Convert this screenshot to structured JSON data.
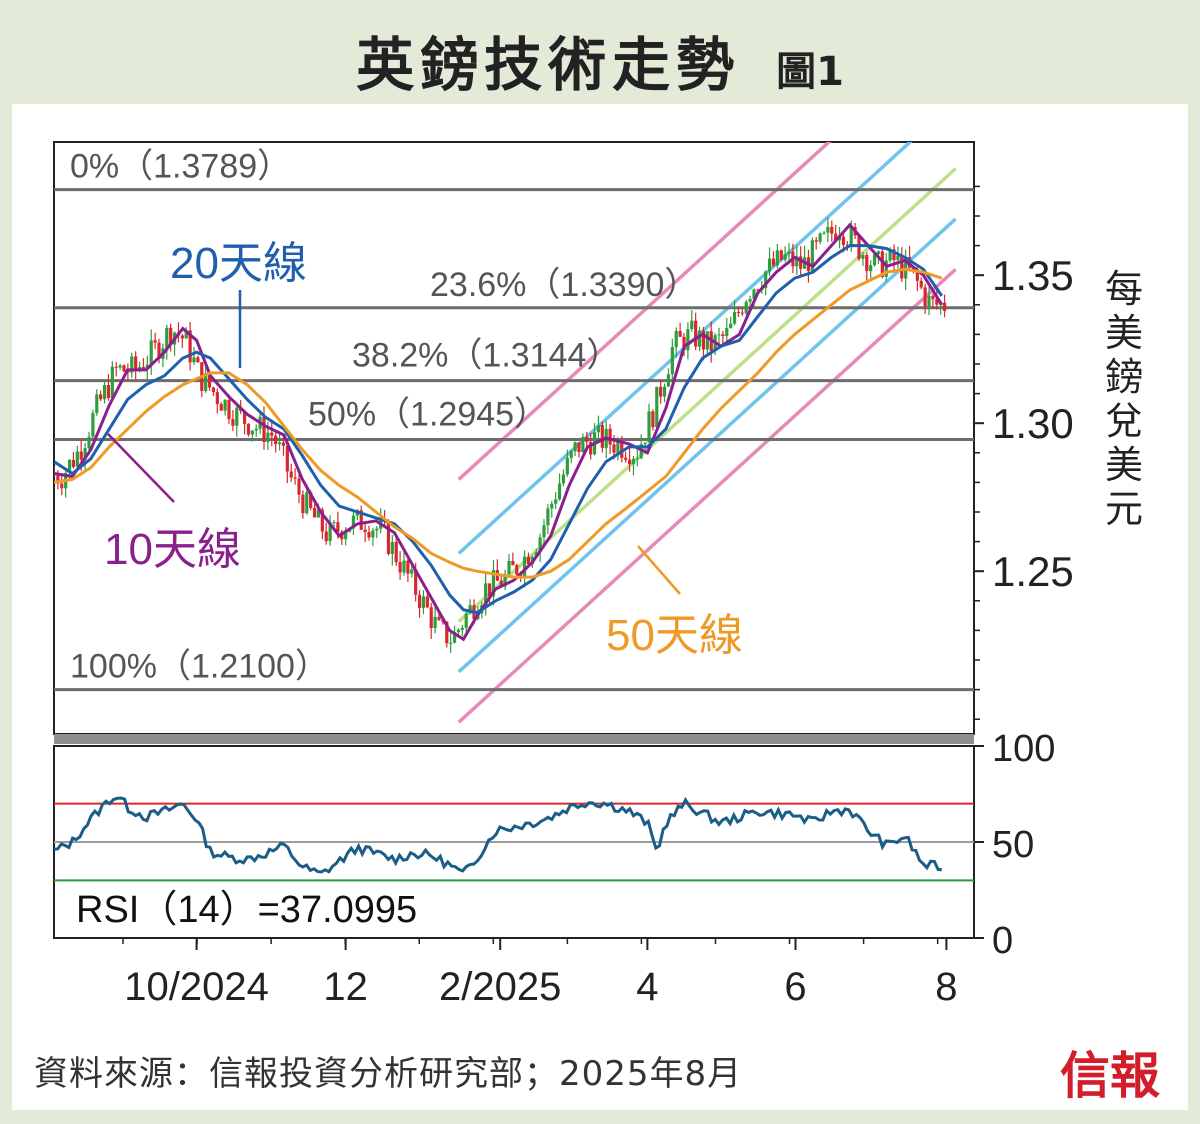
{
  "title": "英鎊技術走勢",
  "figure_label": "圖1",
  "source": "資料來源：信報投資分析研究部；2025年8月",
  "logo_text": "信報",
  "chart_data": [
    {
      "type": "candlestick",
      "ylabel": "每美鎊兌美元",
      "ylim": [
        1.195,
        1.395
      ],
      "yticks": [
        {
          "value": 1.35,
          "label": "1.35"
        },
        {
          "value": 1.3,
          "label": "1.30"
        },
        {
          "value": 1.25,
          "label": "1.25"
        }
      ],
      "xticks": [
        {
          "t": 0.155,
          "label": "10/2024"
        },
        {
          "t": 0.317,
          "label": "12"
        },
        {
          "t": 0.485,
          "label": "2/2025"
        },
        {
          "t": 0.645,
          "label": "4"
        },
        {
          "t": 0.806,
          "label": "6"
        },
        {
          "t": 0.97,
          "label": "8"
        }
      ],
      "fib_levels": [
        {
          "label": "0%（1.3789）",
          "value": 1.3789
        },
        {
          "label": "23.6%（1.3390）",
          "value": 1.339
        },
        {
          "label": "38.2%（1.3144）",
          "value": 1.3144
        },
        {
          "label": "50%（1.2945）",
          "value": 1.2945
        },
        {
          "label": "100%（1.2100）",
          "value": 1.21
        }
      ],
      "series": [
        {
          "name": "10天線",
          "color": "#8a1f8e",
          "points": [
            [
              0,
              1.283
            ],
            [
              0.02,
              1.282
            ],
            [
              0.04,
              1.291
            ],
            [
              0.06,
              1.306
            ],
            [
              0.08,
              1.318
            ],
            [
              0.1,
              1.318
            ],
            [
              0.12,
              1.324
            ],
            [
              0.14,
              1.332
            ],
            [
              0.155,
              1.328
            ],
            [
              0.17,
              1.316
            ],
            [
              0.19,
              1.309
            ],
            [
              0.21,
              1.303
            ],
            [
              0.23,
              1.299
            ],
            [
              0.25,
              1.296
            ],
            [
              0.27,
              1.281
            ],
            [
              0.29,
              1.27
            ],
            [
              0.31,
              1.262
            ],
            [
              0.33,
              1.266
            ],
            [
              0.35,
              1.267
            ],
            [
              0.37,
              1.263
            ],
            [
              0.39,
              1.252
            ],
            [
              0.41,
              1.241
            ],
            [
              0.43,
              1.23
            ],
            [
              0.445,
              1.227
            ],
            [
              0.46,
              1.235
            ],
            [
              0.48,
              1.244
            ],
            [
              0.5,
              1.247
            ],
            [
              0.52,
              1.253
            ],
            [
              0.54,
              1.262
            ],
            [
              0.56,
              1.279
            ],
            [
              0.58,
              1.292
            ],
            [
              0.6,
              1.295
            ],
            [
              0.625,
              1.293
            ],
            [
              0.645,
              1.29
            ],
            [
              0.665,
              1.305
            ],
            [
              0.685,
              1.326
            ],
            [
              0.705,
              1.33
            ],
            [
              0.725,
              1.326
            ],
            [
              0.745,
              1.33
            ],
            [
              0.765,
              1.344
            ],
            [
              0.785,
              1.351
            ],
            [
              0.805,
              1.356
            ],
            [
              0.825,
              1.353
            ],
            [
              0.845,
              1.36
            ],
            [
              0.865,
              1.367
            ],
            [
              0.885,
              1.36
            ],
            [
              0.905,
              1.353
            ],
            [
              0.925,
              1.355
            ],
            [
              0.945,
              1.35
            ],
            [
              0.965,
              1.34
            ]
          ]
        },
        {
          "name": "20天線",
          "color": "#1f5fad",
          "points": [
            [
              0,
              1.287
            ],
            [
              0.02,
              1.283
            ],
            [
              0.04,
              1.288
            ],
            [
              0.06,
              1.298
            ],
            [
              0.08,
              1.308
            ],
            [
              0.1,
              1.313
            ],
            [
              0.12,
              1.316
            ],
            [
              0.14,
              1.322
            ],
            [
              0.155,
              1.324
            ],
            [
              0.17,
              1.322
            ],
            [
              0.19,
              1.315
            ],
            [
              0.21,
              1.308
            ],
            [
              0.23,
              1.302
            ],
            [
              0.25,
              1.298
            ],
            [
              0.27,
              1.289
            ],
            [
              0.29,
              1.279
            ],
            [
              0.31,
              1.272
            ],
            [
              0.33,
              1.27
            ],
            [
              0.35,
              1.268
            ],
            [
              0.37,
              1.266
            ],
            [
              0.39,
              1.26
            ],
            [
              0.41,
              1.252
            ],
            [
              0.43,
              1.242
            ],
            [
              0.445,
              1.237
            ],
            [
              0.46,
              1.236
            ],
            [
              0.48,
              1.24
            ],
            [
              0.5,
              1.243
            ],
            [
              0.52,
              1.247
            ],
            [
              0.54,
              1.254
            ],
            [
              0.56,
              1.266
            ],
            [
              0.58,
              1.278
            ],
            [
              0.6,
              1.287
            ],
            [
              0.625,
              1.292
            ],
            [
              0.645,
              1.292
            ],
            [
              0.665,
              1.298
            ],
            [
              0.685,
              1.312
            ],
            [
              0.705,
              1.322
            ],
            [
              0.725,
              1.326
            ],
            [
              0.745,
              1.328
            ],
            [
              0.765,
              1.336
            ],
            [
              0.785,
              1.344
            ],
            [
              0.805,
              1.349
            ],
            [
              0.825,
              1.351
            ],
            [
              0.845,
              1.356
            ],
            [
              0.865,
              1.36
            ],
            [
              0.885,
              1.36
            ],
            [
              0.905,
              1.359
            ],
            [
              0.925,
              1.356
            ],
            [
              0.945,
              1.352
            ],
            [
              0.965,
              1.343
            ]
          ]
        },
        {
          "name": "50天線",
          "color": "#ef9a26",
          "points": [
            [
              0,
              1.28
            ],
            [
              0.02,
              1.281
            ],
            [
              0.04,
              1.285
            ],
            [
              0.06,
              1.292
            ],
            [
              0.08,
              1.298
            ],
            [
              0.1,
              1.304
            ],
            [
              0.12,
              1.309
            ],
            [
              0.14,
              1.313
            ],
            [
              0.155,
              1.315
            ],
            [
              0.17,
              1.317
            ],
            [
              0.19,
              1.317
            ],
            [
              0.21,
              1.313
            ],
            [
              0.23,
              1.307
            ],
            [
              0.25,
              1.299
            ],
            [
              0.27,
              1.291
            ],
            [
              0.29,
              1.284
            ],
            [
              0.31,
              1.279
            ],
            [
              0.33,
              1.275
            ],
            [
              0.35,
              1.27
            ],
            [
              0.37,
              1.265
            ],
            [
              0.39,
              1.261
            ],
            [
              0.41,
              1.256
            ],
            [
              0.43,
              1.253
            ],
            [
              0.445,
              1.251
            ],
            [
              0.46,
              1.25
            ],
            [
              0.48,
              1.249
            ],
            [
              0.5,
              1.248
            ],
            [
              0.52,
              1.248
            ],
            [
              0.54,
              1.25
            ],
            [
              0.56,
              1.254
            ],
            [
              0.58,
              1.26
            ],
            [
              0.6,
              1.266
            ],
            [
              0.625,
              1.272
            ],
            [
              0.645,
              1.277
            ],
            [
              0.665,
              1.282
            ],
            [
              0.685,
              1.29
            ],
            [
              0.705,
              1.298
            ],
            [
              0.725,
              1.305
            ],
            [
              0.745,
              1.311
            ],
            [
              0.765,
              1.317
            ],
            [
              0.785,
              1.324
            ],
            [
              0.805,
              1.33
            ],
            [
              0.825,
              1.335
            ],
            [
              0.845,
              1.34
            ],
            [
              0.865,
              1.345
            ],
            [
              0.885,
              1.348
            ],
            [
              0.905,
              1.351
            ],
            [
              0.925,
              1.352
            ],
            [
              0.945,
              1.351
            ],
            [
              0.965,
              1.349
            ]
          ]
        }
      ],
      "annotations": [
        "20天線",
        "10天線",
        "50天線"
      ]
    },
    {
      "type": "line",
      "title": "RSI（14）=37.0995",
      "ylim": [
        0,
        100
      ],
      "yticks": [
        {
          "value": 100,
          "label": "100"
        },
        {
          "value": 50,
          "label": "50"
        },
        {
          "value": 0,
          "label": "0"
        }
      ],
      "overbought": 70,
      "oversold": 30,
      "mid": 50,
      "series": [
        {
          "name": "RSI",
          "color": "#1a5d87",
          "points": [
            [
              0,
              45
            ],
            [
              0.02,
              50
            ],
            [
              0.04,
              62
            ],
            [
              0.06,
              72
            ],
            [
              0.07,
              74
            ],
            [
              0.08,
              68
            ],
            [
              0.1,
              63
            ],
            [
              0.12,
              66
            ],
            [
              0.14,
              70
            ],
            [
              0.155,
              62
            ],
            [
              0.17,
              45
            ],
            [
              0.19,
              42
            ],
            [
              0.21,
              41
            ],
            [
              0.23,
              44
            ],
            [
              0.25,
              48
            ],
            [
              0.27,
              37
            ],
            [
              0.29,
              33
            ],
            [
              0.31,
              40
            ],
            [
              0.33,
              47
            ],
            [
              0.35,
              44
            ],
            [
              0.37,
              41
            ],
            [
              0.39,
              44
            ],
            [
              0.41,
              43
            ],
            [
              0.43,
              38
            ],
            [
              0.445,
              33
            ],
            [
              0.46,
              42
            ],
            [
              0.48,
              56
            ],
            [
              0.5,
              58
            ],
            [
              0.52,
              60
            ],
            [
              0.54,
              63
            ],
            [
              0.56,
              68
            ],
            [
              0.58,
              71
            ],
            [
              0.6,
              70
            ],
            [
              0.625,
              66
            ],
            [
              0.645,
              60
            ],
            [
              0.655,
              45
            ],
            [
              0.665,
              60
            ],
            [
              0.685,
              70
            ],
            [
              0.705,
              65
            ],
            [
              0.725,
              60
            ],
            [
              0.745,
              63
            ],
            [
              0.765,
              66
            ],
            [
              0.785,
              65
            ],
            [
              0.805,
              64
            ],
            [
              0.825,
              60
            ],
            [
              0.845,
              66
            ],
            [
              0.865,
              67
            ],
            [
              0.885,
              56
            ],
            [
              0.905,
              48
            ],
            [
              0.925,
              53
            ],
            [
              0.945,
              38
            ],
            [
              0.965,
              37
            ]
          ]
        }
      ]
    }
  ]
}
